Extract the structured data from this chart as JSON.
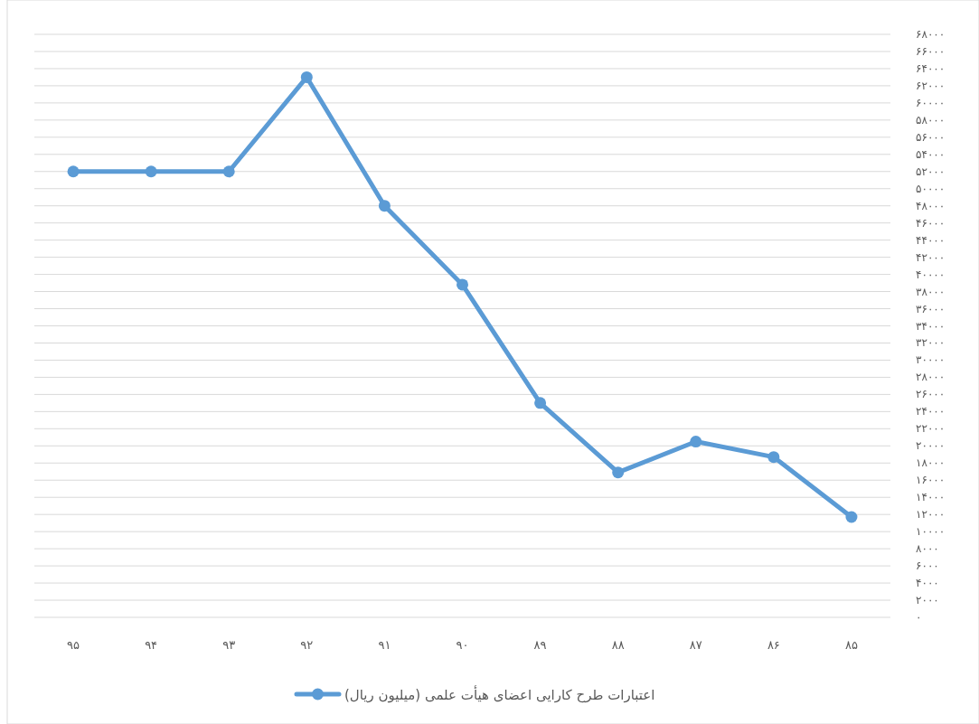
{
  "chart_data": {
    "type": "line",
    "categories": [
      "۹۵",
      "۹۴",
      "۹۳",
      "۹۲",
      "۹۱",
      "۹۰",
      "۸۹",
      "۸۸",
      "۸۷",
      "۸۶",
      "۸۵"
    ],
    "series": [
      {
        "name": "اعتبارات طرح کارایی اعضای هیأت علمی (میلیون ریال)",
        "color": "#5b9bd5",
        "values": [
          52000,
          52000,
          52000,
          63000,
          48000,
          38800,
          25000,
          16900,
          20500,
          18700,
          11700
        ]
      }
    ],
    "ylim": [
      0,
      68000
    ],
    "yticks": [
      {
        "value": 0,
        "label": "۰"
      },
      {
        "value": 2000,
        "label": "۲۰۰۰"
      },
      {
        "value": 4000,
        "label": "۴۰۰۰"
      },
      {
        "value": 6000,
        "label": "۶۰۰۰"
      },
      {
        "value": 8000,
        "label": "۸۰۰۰"
      },
      {
        "value": 10000,
        "label": "۱۰۰۰۰"
      },
      {
        "value": 12000,
        "label": "۱۲۰۰۰"
      },
      {
        "value": 14000,
        "label": "۱۴۰۰۰"
      },
      {
        "value": 16000,
        "label": "۱۶۰۰۰"
      },
      {
        "value": 18000,
        "label": "۱۸۰۰۰"
      },
      {
        "value": 20000,
        "label": "۲۰۰۰۰"
      },
      {
        "value": 22000,
        "label": "۲۲۰۰۰"
      },
      {
        "value": 24000,
        "label": "۲۴۰۰۰"
      },
      {
        "value": 26000,
        "label": "۲۶۰۰۰"
      },
      {
        "value": 28000,
        "label": "۲۸۰۰۰"
      },
      {
        "value": 30000,
        "label": "۳۰۰۰۰"
      },
      {
        "value": 32000,
        "label": "۳۲۰۰۰"
      },
      {
        "value": 34000,
        "label": "۳۴۰۰۰"
      },
      {
        "value": 36000,
        "label": "۳۶۰۰۰"
      },
      {
        "value": 38000,
        "label": "۳۸۰۰۰"
      },
      {
        "value": 40000,
        "label": "۴۰۰۰۰"
      },
      {
        "value": 42000,
        "label": "۴۲۰۰۰"
      },
      {
        "value": 44000,
        "label": "۴۴۰۰۰"
      },
      {
        "value": 46000,
        "label": "۴۶۰۰۰"
      },
      {
        "value": 48000,
        "label": "۴۸۰۰۰"
      },
      {
        "value": 50000,
        "label": "۵۰۰۰۰"
      },
      {
        "value": 52000,
        "label": "۵۲۰۰۰"
      },
      {
        "value": 54000,
        "label": "۵۴۰۰۰"
      },
      {
        "value": 56000,
        "label": "۵۶۰۰۰"
      },
      {
        "value": 58000,
        "label": "۵۸۰۰۰"
      },
      {
        "value": 60000,
        "label": "۶۰۰۰۰"
      },
      {
        "value": 62000,
        "label": "۶۲۰۰۰"
      },
      {
        "value": 64000,
        "label": "۶۴۰۰۰"
      },
      {
        "value": 66000,
        "label": "۶۶۰۰۰"
      },
      {
        "value": 68000,
        "label": "۶۸۰۰۰"
      }
    ],
    "grid": "y",
    "legend": "bottom",
    "marker": "circle",
    "line_style": "solid"
  }
}
